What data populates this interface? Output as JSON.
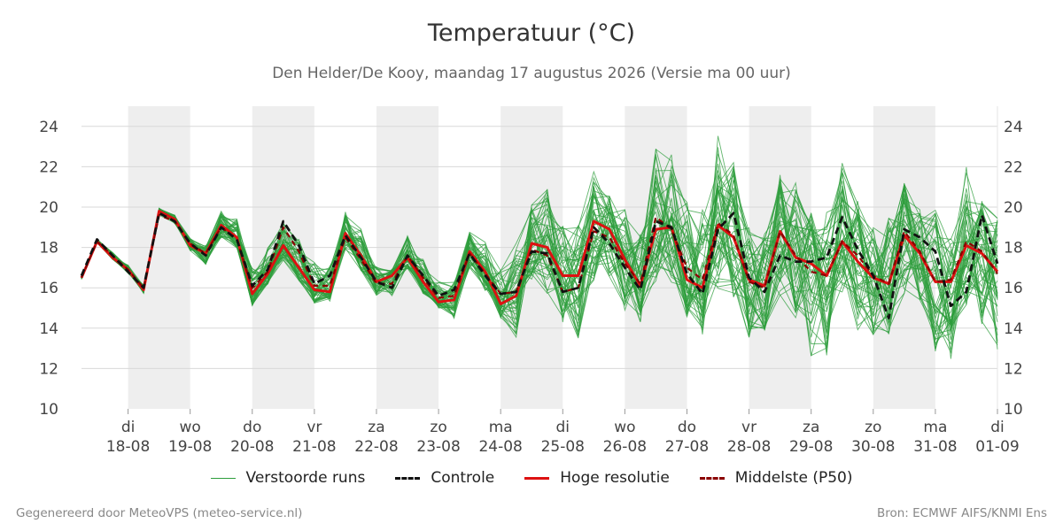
{
  "title": "Temperatuur (°C)",
  "subtitle": "Den Helder/De Kooy, maandag 17 augustus 2026 (Versie ma 00 uur)",
  "footer_left": "Gegenereerd door MeteoVPS (meteo-service.nl)",
  "footer_right": "Bron: ECMWF AIFS/KNMI Ens",
  "colors": {
    "ensemble": "#2e9e3c",
    "controle": "#111111",
    "hoge_resolutie": "#dd1111",
    "p50": "#8b0000",
    "weekend_band": "#eeeeee",
    "grid": "#d8d8d8"
  },
  "legend": [
    {
      "label": "Verstoorde runs",
      "key": "ensemble"
    },
    {
      "label": "Controle",
      "key": "controle"
    },
    {
      "label": "Hoge resolutie",
      "key": "hoge_resolutie"
    },
    {
      "label": "Middelste (P50)",
      "key": "p50"
    }
  ],
  "chart_data": {
    "type": "line",
    "ylim": [
      10,
      25
    ],
    "yticks": [
      10,
      12,
      14,
      16,
      18,
      20,
      22,
      24
    ],
    "x_start": "2026-08-17 06:00",
    "x_end": "2026-09-01 00:00",
    "x_step_hours": 6,
    "xticks": [
      {
        "day": "di",
        "date": "18-08"
      },
      {
        "day": "wo",
        "date": "19-08"
      },
      {
        "day": "do",
        "date": "20-08"
      },
      {
        "day": "vr",
        "date": "21-08"
      },
      {
        "day": "za",
        "date": "22-08"
      },
      {
        "day": "zo",
        "date": "23-08"
      },
      {
        "day": "ma",
        "date": "24-08"
      },
      {
        "day": "di",
        "date": "25-08"
      },
      {
        "day": "wo",
        "date": "26-08"
      },
      {
        "day": "do",
        "date": "27-08"
      },
      {
        "day": "vr",
        "date": "28-08"
      },
      {
        "day": "za",
        "date": "29-08"
      },
      {
        "day": "zo",
        "date": "30-08"
      },
      {
        "day": "ma",
        "date": "31-08"
      },
      {
        "day": "di",
        "date": "01-09"
      }
    ],
    "shaded_days": [
      "18-08",
      "20-08",
      "22-08",
      "24-08",
      "26-08",
      "28-08",
      "30-08"
    ],
    "grid": true,
    "legend_position": "bottom",
    "series": [
      {
        "name": "Hoge resolutie",
        "key": "hoge_resolutie",
        "values": [
          16.5,
          18.3,
          17.5,
          16.9,
          15.9,
          19.8,
          19.4,
          18.1,
          17.7,
          19.1,
          18.5,
          15.7,
          16.7,
          18.1,
          17.0,
          15.9,
          15.8,
          18.7,
          17.6,
          16.3,
          16.6,
          17.5,
          16.3,
          15.3,
          15.4,
          17.8,
          16.8,
          15.2,
          15.6,
          18.2,
          18.0,
          16.6,
          16.6,
          19.3,
          18.9,
          17.4,
          16.1,
          18.9,
          19.0,
          16.4,
          16.0,
          19.1,
          18.5,
          16.4,
          16.1,
          18.8,
          17.5,
          17.2,
          16.6,
          18.3,
          17.3,
          16.5,
          16.2,
          18.6,
          17.7,
          16.3,
          16.3,
          18.1,
          17.7,
          16.8
        ]
      },
      {
        "name": "Controle",
        "key": "controle",
        "values": [
          16.6,
          18.4,
          17.6,
          16.8,
          16.0,
          19.7,
          19.3,
          18.2,
          17.6,
          19.0,
          18.4,
          16.1,
          16.9,
          19.3,
          18.1,
          16.2,
          16.6,
          18.6,
          17.5,
          16.3,
          16.0,
          17.6,
          16.6,
          15.6,
          15.9,
          17.7,
          16.6,
          15.7,
          15.8,
          17.8,
          17.7,
          15.8,
          16.0,
          19.0,
          18.2,
          17.0,
          15.9,
          19.3,
          19.0,
          16.7,
          15.7,
          18.9,
          19.7,
          16.5,
          15.8,
          17.6,
          17.3,
          17.3,
          17.5,
          19.5,
          17.9,
          16.6,
          14.5,
          18.9,
          18.5,
          17.8,
          15.1,
          15.8,
          19.6,
          17.2
        ]
      },
      {
        "name": "Middelste (P50)",
        "key": "p50",
        "values": [
          16.5,
          18.3,
          17.6,
          16.9,
          16.0,
          19.6,
          19.3,
          18.2,
          17.7,
          19.0,
          18.4,
          16.0,
          16.8,
          19.0,
          17.8,
          16.1,
          16.1,
          18.5,
          17.4,
          16.2,
          16.2,
          17.6,
          16.5,
          15.5,
          15.6,
          17.7,
          16.7,
          15.7,
          15.8,
          17.9,
          17.6,
          15.8,
          16.0,
          18.8,
          18.5,
          17.2,
          16.2,
          19.5,
          18.9,
          17.0,
          16.4,
          19.2,
          18.6,
          16.3,
          16.0,
          18.8,
          17.6,
          16.8,
          16.6,
          18.3,
          17.6,
          16.6,
          16.2,
          18.8,
          17.8,
          16.3,
          16.4,
          18.3,
          17.8,
          16.7
        ]
      }
    ],
    "ensemble_series_count": 50,
    "ensemble_spread": [
      [
        16.0,
        17.0
      ],
      [
        17.8,
        19.1
      ],
      [
        17.0,
        18.8
      ],
      [
        16.0,
        18.0
      ],
      [
        15.1,
        17.0
      ],
      [
        19.0,
        20.4
      ],
      [
        18.6,
        20.2
      ],
      [
        17.2,
        19.3
      ],
      [
        15.9,
        19.0
      ],
      [
        17.1,
        21.3
      ],
      [
        17.0,
        21.2
      ],
      [
        14.1,
        19.2
      ],
      [
        15.2,
        20.0
      ],
      [
        16.3,
        20.9
      ],
      [
        15.5,
        20.3
      ],
      [
        14.3,
        19.0
      ],
      [
        14.8,
        18.6
      ],
      [
        17.0,
        20.9
      ],
      [
        16.0,
        20.2
      ],
      [
        15.0,
        17.8
      ],
      [
        14.6,
        17.2
      ],
      [
        16.5,
        19.4
      ],
      [
        15.3,
        18.3
      ],
      [
        14.8,
        17.0
      ],
      [
        13.9,
        16.9
      ],
      [
        16.5,
        19.6
      ],
      [
        15.3,
        19.0
      ],
      [
        14.2,
        17.8
      ],
      [
        12.5,
        19.3
      ],
      [
        15.5,
        20.9
      ],
      [
        14.9,
        22.1
      ],
      [
        13.6,
        20.0
      ],
      [
        12.4,
        19.8
      ],
      [
        15.6,
        22.7
      ],
      [
        15.8,
        21.0
      ],
      [
        14.4,
        20.5
      ],
      [
        14.0,
        19.0
      ],
      [
        16.0,
        23.5
      ],
      [
        16.0,
        23.2
      ],
      [
        14.4,
        20.6
      ],
      [
        13.5,
        20.1
      ],
      [
        15.8,
        24.0
      ],
      [
        15.5,
        22.3
      ],
      [
        13.5,
        19.0
      ],
      [
        13.8,
        18.8
      ],
      [
        15.6,
        21.6
      ],
      [
        14.5,
        21.3
      ],
      [
        12.6,
        19.9
      ],
      [
        12.5,
        19.8
      ],
      [
        15.4,
        22.2
      ],
      [
        13.7,
        20.5
      ],
      [
        13.5,
        19.0
      ],
      [
        13.7,
        19.5
      ],
      [
        15.7,
        21.2
      ],
      [
        15.3,
        20.2
      ],
      [
        12.8,
        19.9
      ],
      [
        12.0,
        18.5
      ],
      [
        14.9,
        22.1
      ],
      [
        14.2,
        20.3
      ],
      [
        12.8,
        19.5
      ]
    ]
  }
}
